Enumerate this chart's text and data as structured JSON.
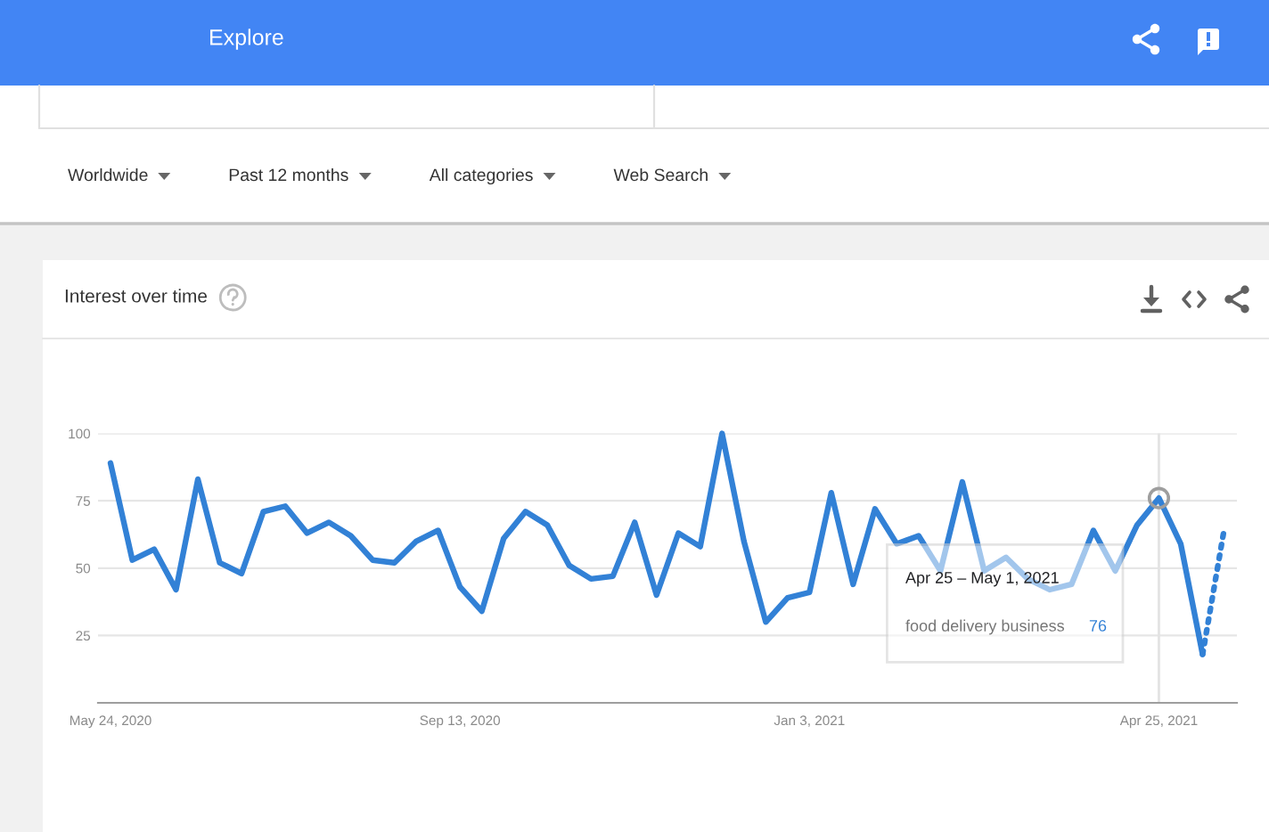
{
  "chart_data": {
    "type": "line",
    "title": "Interest over time",
    "annotations": [
      "Explore",
      "Worldwide",
      "Past 12 months",
      "All categories",
      "Web Search",
      "Apr 25 – May 1, 2021",
      "food delivery business",
      "76"
    ],
    "x": [
      "2020-05-24",
      "2020-05-31",
      "2020-06-07",
      "2020-06-14",
      "2020-06-21",
      "2020-06-28",
      "2020-07-05",
      "2020-07-12",
      "2020-07-19",
      "2020-07-26",
      "2020-08-02",
      "2020-08-09",
      "2020-08-16",
      "2020-08-23",
      "2020-08-30",
      "2020-09-06",
      "2020-09-13",
      "2020-09-20",
      "2020-09-27",
      "2020-10-04",
      "2020-10-11",
      "2020-10-18",
      "2020-10-25",
      "2020-11-01",
      "2020-11-08",
      "2020-11-15",
      "2020-11-22",
      "2020-11-29",
      "2020-12-06",
      "2020-12-13",
      "2020-12-20",
      "2020-12-27",
      "2021-01-03",
      "2021-01-10",
      "2021-01-17",
      "2021-01-24",
      "2021-01-31",
      "2021-02-07",
      "2021-02-14",
      "2021-02-21",
      "2021-02-28",
      "2021-03-07",
      "2021-03-14",
      "2021-03-21",
      "2021-03-28",
      "2021-04-04",
      "2021-04-11",
      "2021-04-18",
      "2021-04-25",
      "2021-05-02",
      "2021-05-09",
      "2021-05-16"
    ],
    "series": [
      {
        "color": "#3281d6",
        "values": [
          89,
          53,
          57,
          42,
          83,
          52,
          48,
          71,
          73,
          63,
          67,
          62,
          53,
          52,
          60,
          64,
          43,
          34,
          61,
          71,
          66,
          51,
          46,
          47,
          67,
          40,
          63,
          58,
          100,
          60,
          30,
          39,
          41,
          78,
          44,
          72,
          59,
          62,
          49,
          82,
          49,
          54,
          46,
          42,
          44,
          64,
          49,
          66,
          76,
          59,
          18,
          null
        ]
      },
      {
        "color": "#3281d6",
        "line_style": "dotted",
        "values": [
          null,
          null,
          null,
          null,
          null,
          null,
          null,
          null,
          null,
          null,
          null,
          null,
          null,
          null,
          null,
          null,
          null,
          null,
          null,
          null,
          null,
          null,
          null,
          null,
          null,
          null,
          null,
          null,
          null,
          null,
          null,
          null,
          null,
          null,
          null,
          null,
          null,
          null,
          null,
          null,
          null,
          null,
          null,
          null,
          null,
          null,
          null,
          null,
          null,
          null,
          18,
          65
        ]
      },
      {
        "type": "scatter",
        "marker": "circle",
        "color": "#9e9e9e",
        "x": [
          "2021-04-25"
        ],
        "values": [
          76
        ]
      }
    ],
    "xlim": [
      "2020-05-20",
      "2021-05-20"
    ],
    "xticks": [
      {
        "value": "2020-05-24",
        "label": "May 24, 2020"
      },
      {
        "value": "2020-09-13",
        "label": "Sep 13, 2020"
      },
      {
        "value": "2021-01-03",
        "label": "Jan 3, 2021"
      },
      {
        "value": "2021-04-25",
        "label": "Apr 25, 2021"
      }
    ],
    "ylim": [
      0,
      100
    ],
    "yticks": [
      25,
      50,
      75,
      100
    ],
    "ref_lines": [
      {
        "axis": "x",
        "value": "2021-04-25",
        "color": "#e3e3e3"
      }
    ],
    "grid": "y"
  }
}
